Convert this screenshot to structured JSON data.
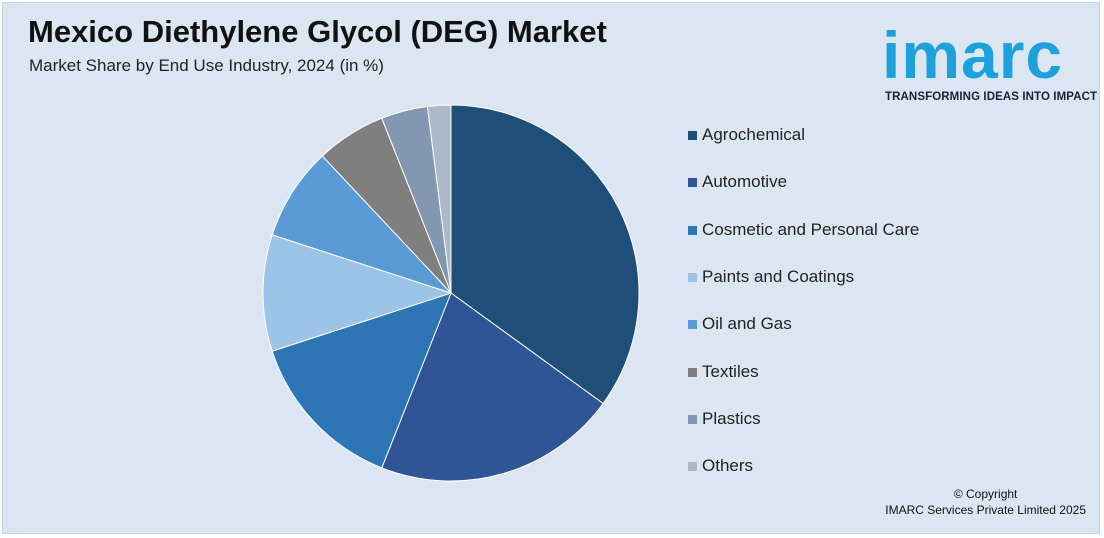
{
  "header": {
    "title": "Mexico Diethylene Glycol (DEG) Market",
    "subtitle": "Market Share by End Use Industry, 2024 (in %)"
  },
  "logo": {
    "wordmark": "imarc",
    "tagline": "TRANSFORMING IDEAS INTO IMPACT",
    "color": "#1da1dc"
  },
  "chart_data": {
    "type": "pie",
    "title": "Mexico Diethylene Glycol (DEG) Market",
    "subtitle": "Market Share by End Use Industry, 2024 (in %)",
    "legend_position": "right",
    "slices": [
      {
        "label": "Agrochemical",
        "value": 35,
        "color": "#1f4e79"
      },
      {
        "label": "Automotive",
        "value": 21,
        "color": "#2f5597"
      },
      {
        "label": "Cosmetic and Personal Care",
        "value": 14,
        "color": "#2e75b6"
      },
      {
        "label": "Paints and Coatings",
        "value": 10,
        "color": "#9dc3e6"
      },
      {
        "label": "Oil and Gas",
        "value": 8,
        "color": "#5b9bd5"
      },
      {
        "label": "Textiles",
        "value": 6,
        "color": "#7f7f7f"
      },
      {
        "label": "Plastics",
        "value": 4,
        "color": "#8497b0"
      },
      {
        "label": "Others",
        "value": 2,
        "color": "#adb9ca"
      }
    ]
  },
  "footer": {
    "copyright_line1": "© Copyright",
    "copyright_line2": "IMARC Services Private Limited 2025"
  }
}
